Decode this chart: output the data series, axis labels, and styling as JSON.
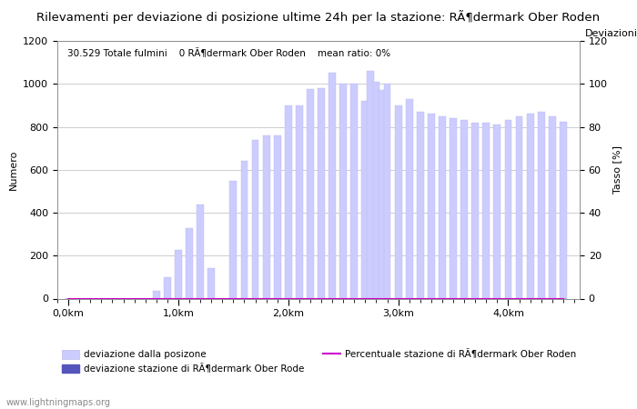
{
  "title": "Rilevamenti per deviazione di posizione ultime 24h per la stazione: RÃ¶dermark Ober Roden",
  "subtitle": "30.529 Totale fulmini    0 RÃ¶dermark Ober Roden    mean ratio: 0%",
  "ylabel_left": "Numero",
  "ylabel_right": "Tasso [%]",
  "right_top_label": "Deviazioni",
  "watermark": "www.lightningmaps.org",
  "x_tick_positions": [
    0,
    1,
    2,
    3,
    4
  ],
  "x_tick_labels": [
    "0,0km",
    "1,0km",
    "2,0km",
    "3,0km",
    "4,0km"
  ],
  "ylim_left": [
    0,
    1200
  ],
  "ylim_right": [
    0,
    120
  ],
  "yticks_left": [
    0,
    200,
    400,
    600,
    800,
    1000,
    1200
  ],
  "yticks_right": [
    0,
    20,
    40,
    60,
    80,
    100,
    120
  ],
  "xlim": [
    -0.1,
    4.65
  ],
  "bar_color": "#ccccff",
  "bar_edge_color": "#bbbbee",
  "station_bar_color": "#5555bb",
  "percent_line_color": "#cc00cc",
  "bar_width": 0.065,
  "x_positions": [
    0.0,
    0.1,
    0.2,
    0.3,
    0.4,
    0.5,
    0.6,
    0.7,
    0.8,
    0.9,
    1.0,
    1.1,
    1.2,
    1.3,
    1.4,
    1.5,
    1.6,
    1.7,
    1.8,
    1.9,
    2.0,
    2.1,
    2.2,
    2.3,
    2.4,
    2.5,
    2.6,
    2.7,
    2.75,
    2.8,
    2.85,
    2.9,
    3.0,
    3.1,
    3.2,
    3.3,
    3.4,
    3.5,
    3.6,
    3.7,
    3.8,
    3.9,
    4.0,
    4.1,
    4.2,
    4.3,
    4.4,
    4.5
  ],
  "bar_values": [
    0,
    0,
    0,
    0,
    0,
    0,
    0,
    0,
    35,
    100,
    225,
    330,
    440,
    140,
    0,
    550,
    640,
    740,
    760,
    760,
    900,
    900,
    975,
    980,
    1050,
    1000,
    1000,
    920,
    1060,
    1010,
    970,
    1000,
    900,
    930,
    870,
    860,
    850,
    840,
    830,
    820,
    820,
    810,
    830,
    850,
    860,
    870,
    850,
    825
  ],
  "station_values": [
    0,
    0,
    0,
    0,
    0,
    0,
    0,
    0,
    0,
    0,
    0,
    0,
    0,
    0,
    0,
    0,
    0,
    0,
    0,
    0,
    0,
    0,
    0,
    0,
    0,
    0,
    0,
    0,
    0,
    0,
    0,
    0,
    0,
    0,
    0,
    0,
    0,
    0,
    0,
    0,
    0,
    0,
    0,
    0,
    0,
    0,
    0,
    0
  ],
  "percent_values": [
    0,
    0,
    0,
    0,
    0,
    0,
    0,
    0,
    0,
    0,
    0,
    0,
    0,
    0,
    0,
    0,
    0,
    0,
    0,
    0,
    0,
    0,
    0,
    0,
    0,
    0,
    0,
    0,
    0,
    0,
    0,
    0,
    0,
    0,
    0,
    0,
    0,
    0,
    0,
    0,
    0,
    0,
    0,
    0,
    0,
    0,
    0,
    0
  ],
  "legend_label_bar": "deviazione dalla posizone",
  "legend_label_station": "deviazione stazione di RÃ¶dermark Ober Rode",
  "legend_label_line": "Percentuale stazione di RÃ¶dermark Ober Roden",
  "title_fontsize": 9.5,
  "subtitle_fontsize": 7.5,
  "axis_label_fontsize": 8,
  "tick_fontsize": 8,
  "legend_fontsize": 7.5,
  "watermark_fontsize": 7
}
